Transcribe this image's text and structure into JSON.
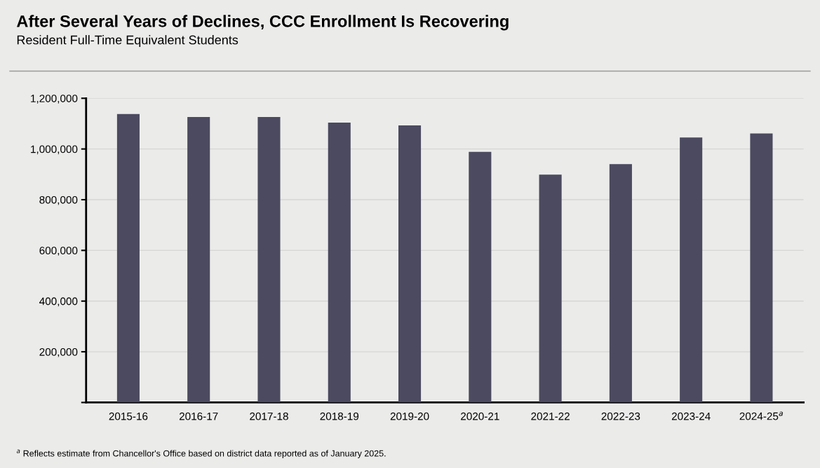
{
  "chart_data": {
    "type": "bar",
    "title": "After Several Years of Declines, CCC Enrollment Is Recovering",
    "subtitle": "Resident Full-Time Equivalent Students",
    "categories": [
      "2015-16",
      "2016-17",
      "2017-18",
      "2018-19",
      "2019-20",
      "2020-21",
      "2021-22",
      "2022-23",
      "2023-24",
      "2024-25$^{a}$"
    ],
    "values": [
      1138000,
      1126000,
      1126000,
      1104000,
      1093000,
      989000,
      899000,
      940000,
      1045000,
      1061000
    ],
    "color": "#4b4a60",
    "ylim": [
      0,
      1200000
    ],
    "yticks": [
      {
        "value": 0,
        "label": null
      },
      {
        "value": 200000,
        "label": "200,000"
      },
      {
        "value": 400000,
        "label": "400,000"
      },
      {
        "value": 600000,
        "label": "600,000"
      },
      {
        "value": 800000,
        "label": "800,000"
      },
      {
        "value": 1000000,
        "label": "1,000,000"
      },
      {
        "value": 1200000,
        "label": "1,200,000"
      }
    ],
    "grid": "y",
    "annotations": [
      "$^{a}$ Reflects estimate from Chancellor's Office based on district data reported as of January 2025."
    ]
  }
}
